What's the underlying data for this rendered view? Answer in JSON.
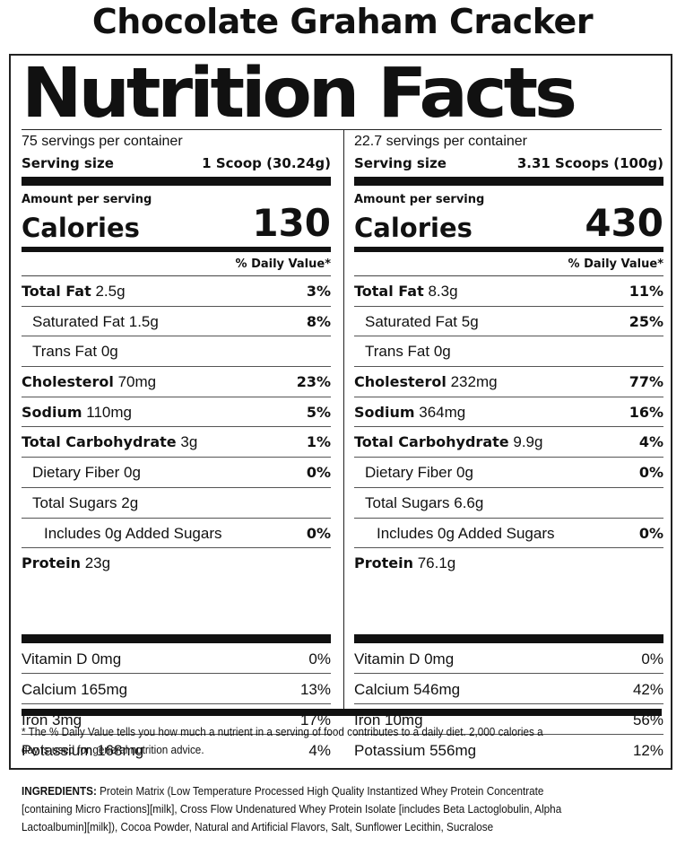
{
  "product_title": "Chocolate Graham Cracker",
  "panel_title": "Nutrition Facts",
  "left": {
    "servings": "75 servings per container",
    "serving_size_label": "Serving size",
    "serving_size_value": "1 Scoop (30.24g)",
    "amount_label": "Amount per serving",
    "calories_label": "Calories",
    "calories": "130",
    "dv_header": "% Daily Value*",
    "nutrients": [
      {
        "name": "Total Fat",
        "amount": "2.5g",
        "dv": "3%"
      },
      {
        "name": "Saturated Fat",
        "amount": "1.5g",
        "dv": "8%"
      },
      {
        "name": "Trans Fat",
        "amount": "0g",
        "dv": ""
      },
      {
        "name": "Cholesterol",
        "amount": "70mg",
        "dv": "23%"
      },
      {
        "name": "Sodium",
        "amount": "110mg",
        "dv": "5%"
      },
      {
        "name": "Total Carbohydrate",
        "amount": "3g",
        "dv": "1%"
      },
      {
        "name": "Dietary Fiber",
        "amount": "0g",
        "dv": "0%"
      },
      {
        "name": "Total Sugars",
        "amount": "2g",
        "dv": ""
      },
      {
        "name": "Includes 0g Added Sugars",
        "amount": "",
        "dv": "0%"
      },
      {
        "name": "Protein",
        "amount": "23g",
        "dv": ""
      }
    ],
    "vitamins": [
      {
        "name": "Vitamin D 0mg",
        "dv": "0%"
      },
      {
        "name": "Calcium 165mg",
        "dv": "13%"
      },
      {
        "name": "Iron 3mg",
        "dv": "17%"
      },
      {
        "name": "Potassium 168mg",
        "dv": "4%"
      }
    ]
  },
  "right": {
    "servings": "22.7 servings per container",
    "serving_size_label": "Serving size",
    "serving_size_value": "3.31 Scoops (100g)",
    "amount_label": "Amount per serving",
    "calories_label": "Calories",
    "calories": "430",
    "dv_header": "% Daily Value*",
    "nutrients": [
      {
        "name": "Total Fat",
        "amount": "8.3g",
        "dv": "11%"
      },
      {
        "name": "Saturated Fat",
        "amount": "5g",
        "dv": "25%"
      },
      {
        "name": "Trans Fat",
        "amount": "0g",
        "dv": ""
      },
      {
        "name": "Cholesterol",
        "amount": "232mg",
        "dv": "77%"
      },
      {
        "name": "Sodium",
        "amount": "364mg",
        "dv": "16%"
      },
      {
        "name": "Total Carbohydrate",
        "amount": "9.9g",
        "dv": "4%"
      },
      {
        "name": "Dietary Fiber",
        "amount": "0g",
        "dv": "0%"
      },
      {
        "name": "Total Sugars",
        "amount": "6.6g",
        "dv": ""
      },
      {
        "name": "Includes 0g Added Sugars",
        "amount": "",
        "dv": "0%"
      },
      {
        "name": "Protein",
        "amount": "76.1g",
        "dv": ""
      }
    ],
    "vitamins": [
      {
        "name": "Vitamin D 0mg",
        "dv": "0%"
      },
      {
        "name": "Calcium 546mg",
        "dv": "42%"
      },
      {
        "name": "Iron 10mg",
        "dv": "56%"
      },
      {
        "name": "Potassium 556mg",
        "dv": "12%"
      }
    ]
  },
  "footnote_line1": "* The % Daily Value tells you how much a nutrient in a serving of food contributes to a daily diet. 2,000 calories a",
  "footnote_line2": "day is used for general nutrition advice.",
  "ingredients_label": "INGREDIENTS:",
  "ingredients_line1": "Protein Matrix (Low Temperature Processed High Quality Instantized Whey Protein Concentrate",
  "ingredients_line2": "[containing Micro Fractions][milk], Cross Flow Undenatured Whey Protein Isolate [includes Beta Lactoglobulin, Alpha",
  "ingredients_line3": "Lactoalbumin][milk]), Cocoa Powder, Natural and Artificial Flavors, Salt, Sunflower Lecithin, Sucralose"
}
